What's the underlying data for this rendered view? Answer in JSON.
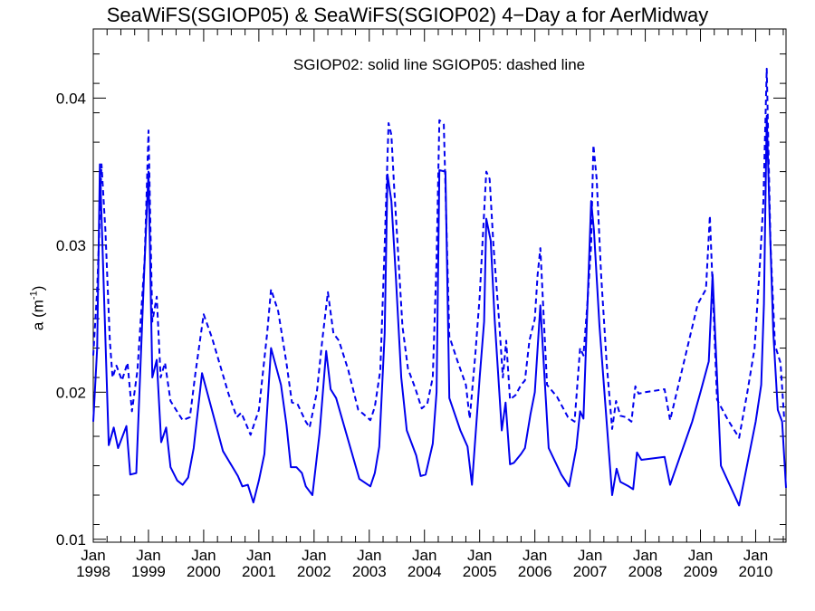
{
  "chart_data": {
    "type": "line",
    "title": "SeaWiFS(SGIOP05) & SeaWiFS(SGIOP02) 4−Day a for AerMidway",
    "annotation": "SGIOP02: solid line   SGIOP05: dashed line",
    "ylabel_main": "a (m",
    "ylabel_sup": "-1",
    "ylabel_close": ")",
    "ylim": [
      0.0098,
      0.0447
    ],
    "xlim": [
      1998.0,
      2010.55
    ],
    "y_ticks": [
      {
        "value": 0.01,
        "label": "0.01"
      },
      {
        "value": 0.02,
        "label": "0.02"
      },
      {
        "value": 0.03,
        "label": "0.03"
      },
      {
        "value": 0.04,
        "label": "0.04"
      }
    ],
    "x_ticks": [
      {
        "value": 1998,
        "month": "Jan",
        "year": "1998"
      },
      {
        "value": 1999,
        "month": "Jan",
        "year": "1999"
      },
      {
        "value": 2000,
        "month": "Jan",
        "year": "2000"
      },
      {
        "value": 2001,
        "month": "Jan",
        "year": "2001"
      },
      {
        "value": 2002,
        "month": "Jan",
        "year": "2002"
      },
      {
        "value": 2003,
        "month": "Jan",
        "year": "2003"
      },
      {
        "value": 2004,
        "month": "Jan",
        "year": "2004"
      },
      {
        "value": 2005,
        "month": "Jan",
        "year": "2005"
      },
      {
        "value": 2006,
        "month": "Jan",
        "year": "2006"
      },
      {
        "value": 2007,
        "month": "Jan",
        "year": "2007"
      },
      {
        "value": 2008,
        "month": "Jan",
        "year": "2008"
      },
      {
        "value": 2009,
        "month": "Jan",
        "year": "2009"
      },
      {
        "value": 2010,
        "month": "Jan",
        "year": "2010"
      }
    ],
    "line_color": "#0000ee",
    "series": [
      {
        "style": "solid",
        "points": [
          [
            1998.0,
            0.018
          ],
          [
            1998.07,
            0.023
          ],
          [
            1998.12,
            0.0355
          ],
          [
            1998.15,
            0.032
          ],
          [
            1998.28,
            0.0164
          ],
          [
            1998.37,
            0.0176
          ],
          [
            1998.45,
            0.0162
          ],
          [
            1998.6,
            0.0177
          ],
          [
            1998.67,
            0.0144
          ],
          [
            1998.78,
            0.0145
          ],
          [
            1998.92,
            0.028
          ],
          [
            1999.0,
            0.035
          ],
          [
            1999.07,
            0.021
          ],
          [
            1999.15,
            0.0222
          ],
          [
            1999.23,
            0.0166
          ],
          [
            1999.32,
            0.0176
          ],
          [
            1999.4,
            0.0149
          ],
          [
            1999.52,
            0.014
          ],
          [
            1999.62,
            0.0137
          ],
          [
            1999.72,
            0.0142
          ],
          [
            1999.82,
            0.0162
          ],
          [
            1999.97,
            0.0213
          ],
          [
            2000.35,
            0.016
          ],
          [
            2000.62,
            0.0143
          ],
          [
            2000.7,
            0.0136
          ],
          [
            2000.8,
            0.0137
          ],
          [
            2000.9,
            0.0125
          ],
          [
            2001.0,
            0.014
          ],
          [
            2001.1,
            0.0158
          ],
          [
            2001.22,
            0.023
          ],
          [
            2001.4,
            0.0205
          ],
          [
            2001.5,
            0.0178
          ],
          [
            2001.58,
            0.0149
          ],
          [
            2001.68,
            0.0149
          ],
          [
            2001.78,
            0.0145
          ],
          [
            2001.85,
            0.0136
          ],
          [
            2001.97,
            0.013
          ],
          [
            2002.1,
            0.0172
          ],
          [
            2002.22,
            0.0228
          ],
          [
            2002.3,
            0.0202
          ],
          [
            2002.4,
            0.0196
          ],
          [
            2002.82,
            0.0141
          ],
          [
            2003.02,
            0.0136
          ],
          [
            2003.1,
            0.0145
          ],
          [
            2003.18,
            0.0163
          ],
          [
            2003.28,
            0.024
          ],
          [
            2003.33,
            0.0348
          ],
          [
            2003.4,
            0.033
          ],
          [
            2003.48,
            0.028
          ],
          [
            2003.58,
            0.021
          ],
          [
            2003.68,
            0.0174
          ],
          [
            2003.85,
            0.0157
          ],
          [
            2003.93,
            0.0143
          ],
          [
            2004.02,
            0.0144
          ],
          [
            2004.15,
            0.0165
          ],
          [
            2004.22,
            0.02
          ],
          [
            2004.27,
            0.0351
          ],
          [
            2004.38,
            0.035
          ],
          [
            2004.45,
            0.0196
          ],
          [
            2004.65,
            0.0174
          ],
          [
            2004.78,
            0.0163
          ],
          [
            2004.86,
            0.0137
          ],
          [
            2005.0,
            0.021
          ],
          [
            2005.08,
            0.0248
          ],
          [
            2005.12,
            0.0318
          ],
          [
            2005.2,
            0.0303
          ],
          [
            2005.27,
            0.025
          ],
          [
            2005.4,
            0.0174
          ],
          [
            2005.47,
            0.0193
          ],
          [
            2005.55,
            0.0151
          ],
          [
            2005.62,
            0.0152
          ],
          [
            2005.75,
            0.0158
          ],
          [
            2005.82,
            0.0162
          ],
          [
            2005.92,
            0.0185
          ],
          [
            2006.0,
            0.02
          ],
          [
            2006.1,
            0.0259
          ],
          [
            2006.25,
            0.0162
          ],
          [
            2006.48,
            0.0144
          ],
          [
            2006.62,
            0.0136
          ],
          [
            2006.75,
            0.0162
          ],
          [
            2006.82,
            0.0187
          ],
          [
            2006.88,
            0.0182
          ],
          [
            2007.02,
            0.033
          ],
          [
            2007.07,
            0.031
          ],
          [
            2007.17,
            0.0245
          ],
          [
            2007.3,
            0.018
          ],
          [
            2007.4,
            0.013
          ],
          [
            2007.48,
            0.0148
          ],
          [
            2007.55,
            0.0139
          ],
          [
            2007.7,
            0.0136
          ],
          [
            2007.78,
            0.0134
          ],
          [
            2007.85,
            0.0159
          ],
          [
            2007.93,
            0.0154
          ],
          [
            2008.35,
            0.0156
          ],
          [
            2008.45,
            0.0137
          ],
          [
            2008.85,
            0.018
          ],
          [
            2009.0,
            0.02
          ],
          [
            2009.15,
            0.0221
          ],
          [
            2009.22,
            0.028
          ],
          [
            2009.37,
            0.015
          ],
          [
            2009.7,
            0.0123
          ],
          [
            2010.0,
            0.018
          ],
          [
            2010.1,
            0.0205
          ],
          [
            2010.15,
            0.026
          ],
          [
            2010.2,
            0.0388
          ],
          [
            2010.26,
            0.031
          ],
          [
            2010.32,
            0.024
          ],
          [
            2010.4,
            0.0188
          ],
          [
            2010.48,
            0.018
          ],
          [
            2010.55,
            0.0135
          ]
        ]
      },
      {
        "style": "dashed",
        "points": [
          [
            1998.0,
            0.0225
          ],
          [
            1998.07,
            0.027
          ],
          [
            1998.1,
            0.03
          ],
          [
            1998.15,
            0.0355
          ],
          [
            1998.22,
            0.031
          ],
          [
            1998.3,
            0.0235
          ],
          [
            1998.35,
            0.021
          ],
          [
            1998.42,
            0.0218
          ],
          [
            1998.52,
            0.0208
          ],
          [
            1998.62,
            0.022
          ],
          [
            1998.7,
            0.0187
          ],
          [
            1998.8,
            0.0215
          ],
          [
            1998.93,
            0.029
          ],
          [
            1999.0,
            0.0378
          ],
          [
            1999.07,
            0.0248
          ],
          [
            1999.15,
            0.0265
          ],
          [
            1999.22,
            0.021
          ],
          [
            1999.3,
            0.022
          ],
          [
            1999.4,
            0.0194
          ],
          [
            1999.55,
            0.0185
          ],
          [
            1999.62,
            0.0181
          ],
          [
            1999.75,
            0.0183
          ],
          [
            1999.85,
            0.0213
          ],
          [
            2000.0,
            0.0253
          ],
          [
            2000.15,
            0.0237
          ],
          [
            2000.3,
            0.0218
          ],
          [
            2000.45,
            0.0199
          ],
          [
            2000.6,
            0.0183
          ],
          [
            2000.68,
            0.0186
          ],
          [
            2000.75,
            0.018
          ],
          [
            2000.85,
            0.0171
          ],
          [
            2001.0,
            0.0188
          ],
          [
            2001.15,
            0.024
          ],
          [
            2001.22,
            0.027
          ],
          [
            2001.35,
            0.0255
          ],
          [
            2001.5,
            0.022
          ],
          [
            2001.6,
            0.0193
          ],
          [
            2001.7,
            0.0192
          ],
          [
            2001.85,
            0.018
          ],
          [
            2001.92,
            0.0176
          ],
          [
            2002.05,
            0.02
          ],
          [
            2002.15,
            0.0236
          ],
          [
            2002.25,
            0.0268
          ],
          [
            2002.35,
            0.024
          ],
          [
            2002.45,
            0.0235
          ],
          [
            2002.62,
            0.0215
          ],
          [
            2002.8,
            0.0188
          ],
          [
            2002.9,
            0.0185
          ],
          [
            2003.02,
            0.0181
          ],
          [
            2003.1,
            0.019
          ],
          [
            2003.2,
            0.0215
          ],
          [
            2003.28,
            0.03
          ],
          [
            2003.35,
            0.0383
          ],
          [
            2003.4,
            0.0375
          ],
          [
            2003.45,
            0.034
          ],
          [
            2003.53,
            0.029
          ],
          [
            2003.6,
            0.0245
          ],
          [
            2003.7,
            0.0216
          ],
          [
            2003.83,
            0.0203
          ],
          [
            2003.95,
            0.0189
          ],
          [
            2004.05,
            0.0192
          ],
          [
            2004.15,
            0.021
          ],
          [
            2004.22,
            0.029
          ],
          [
            2004.27,
            0.0385
          ],
          [
            2004.35,
            0.0382
          ],
          [
            2004.45,
            0.0238
          ],
          [
            2004.6,
            0.0221
          ],
          [
            2004.75,
            0.0205
          ],
          [
            2004.82,
            0.0182
          ],
          [
            2004.92,
            0.0225
          ],
          [
            2005.0,
            0.0265
          ],
          [
            2005.05,
            0.03
          ],
          [
            2005.12,
            0.035
          ],
          [
            2005.18,
            0.0345
          ],
          [
            2005.25,
            0.03
          ],
          [
            2005.35,
            0.025
          ],
          [
            2005.42,
            0.021
          ],
          [
            2005.48,
            0.0235
          ],
          [
            2005.55,
            0.0195
          ],
          [
            2005.65,
            0.0198
          ],
          [
            2005.75,
            0.0205
          ],
          [
            2005.82,
            0.0208
          ],
          [
            2005.9,
            0.0235
          ],
          [
            2006.0,
            0.025
          ],
          [
            2006.05,
            0.028
          ],
          [
            2006.1,
            0.0298
          ],
          [
            2006.22,
            0.0205
          ],
          [
            2006.4,
            0.0197
          ],
          [
            2006.5,
            0.019
          ],
          [
            2006.6,
            0.0183
          ],
          [
            2006.72,
            0.018
          ],
          [
            2006.82,
            0.023
          ],
          [
            2006.88,
            0.0225
          ],
          [
            2006.95,
            0.026
          ],
          [
            2007.02,
            0.03
          ],
          [
            2007.06,
            0.0368
          ],
          [
            2007.12,
            0.0345
          ],
          [
            2007.2,
            0.028
          ],
          [
            2007.3,
            0.022
          ],
          [
            2007.4,
            0.0175
          ],
          [
            2007.47,
            0.0194
          ],
          [
            2007.55,
            0.0184
          ],
          [
            2007.65,
            0.0183
          ],
          [
            2007.75,
            0.018
          ],
          [
            2007.82,
            0.0204
          ],
          [
            2007.88,
            0.0199
          ],
          [
            2008.0,
            0.02
          ],
          [
            2008.35,
            0.0202
          ],
          [
            2008.45,
            0.0181
          ],
          [
            2008.95,
            0.026
          ],
          [
            2009.1,
            0.027
          ],
          [
            2009.17,
            0.032
          ],
          [
            2009.3,
            0.0195
          ],
          [
            2009.5,
            0.0181
          ],
          [
            2009.7,
            0.0169
          ],
          [
            2009.85,
            0.02
          ],
          [
            2009.98,
            0.023
          ],
          [
            2010.08,
            0.029
          ],
          [
            2010.14,
            0.033
          ],
          [
            2010.2,
            0.042
          ],
          [
            2010.27,
            0.03
          ],
          [
            2010.35,
            0.0232
          ],
          [
            2010.45,
            0.022
          ],
          [
            2010.52,
            0.018
          ]
        ]
      }
    ]
  }
}
